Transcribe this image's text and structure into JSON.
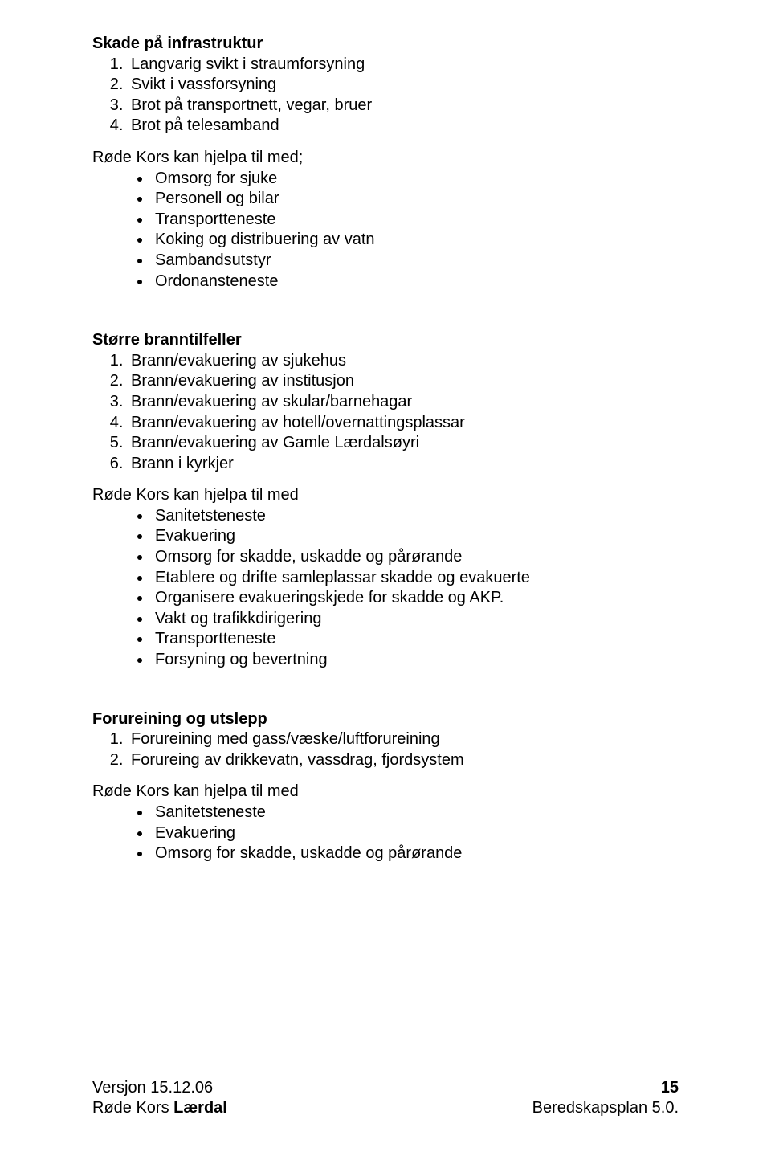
{
  "sections": {
    "s1": {
      "title": "Skade på infrastruktur",
      "items": [
        "Langvarig svikt i straumforsyning",
        "Svikt i vassforsyning",
        "Brot på transportnett, vegar, bruer",
        "Brot på telesamband"
      ],
      "lead": "Røde Kors kan hjelpa til med;",
      "bullets": [
        "Omsorg for sjuke",
        "Personell og bilar",
        "Transportteneste",
        "Koking og distribuering av vatn",
        "Sambandsutstyr",
        "Ordonansteneste"
      ]
    },
    "s2": {
      "title": "Større branntilfeller",
      "items": [
        "Brann/evakuering av sjukehus",
        "Brann/evakuering av institusjon",
        "Brann/evakuering av skular/barnehagar",
        "Brann/evakuering av hotell/overnattingsplassar",
        "Brann/evakuering av Gamle Lærdalsøyri",
        "Brann i kyrkjer"
      ],
      "lead": "Røde Kors kan hjelpa til med",
      "bullets": [
        "Sanitetsteneste",
        "Evakuering",
        "Omsorg for skadde, uskadde og pårørande",
        "Etablere og drifte samleplassar skadde og evakuerte",
        "Organisere evakueringskjede for skadde og AKP.",
        "Vakt og trafikkdirigering",
        "Transportteneste",
        "Forsyning og bevertning"
      ]
    },
    "s3": {
      "title": "Forureining og utslepp",
      "items": [
        "Forureining med gass/væske/luftforureining",
        "Forureing av drikkevatn, vassdrag, fjordsystem"
      ],
      "lead": "Røde Kors kan hjelpa til med",
      "bullets": [
        "Sanitetsteneste",
        "Evakuering",
        "Omsorg for skadde, uskadde og pårørande"
      ]
    }
  },
  "footer": {
    "left_line1": "Versjon 15.12.06",
    "left_line2_prefix": "Røde Kors ",
    "left_line2_bold": "Lærdal",
    "right_page": "15",
    "right_line2": "Beredskapsplan 5.0."
  }
}
